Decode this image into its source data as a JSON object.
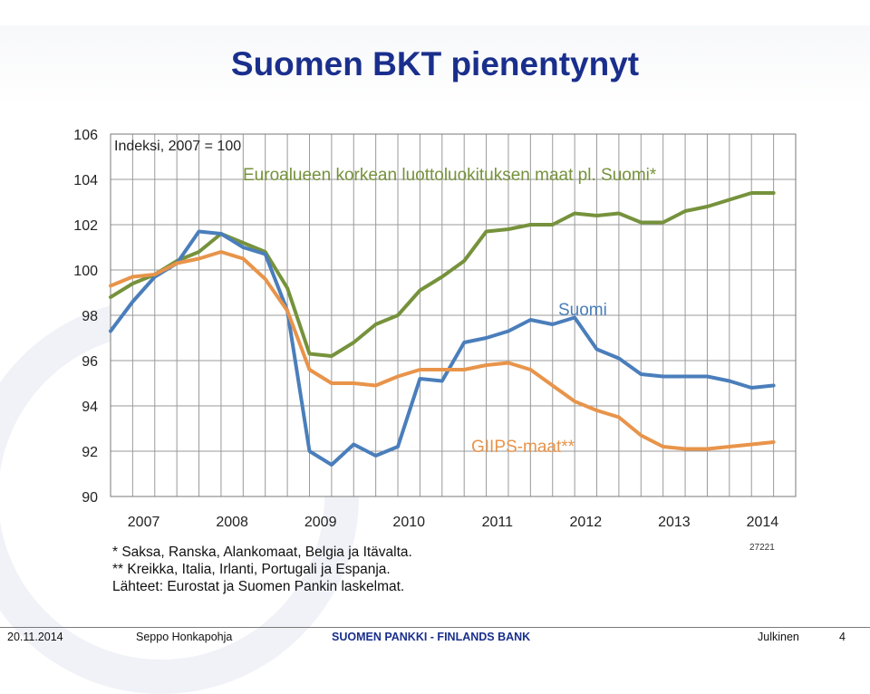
{
  "title": "Suomen BKT pienentynyt",
  "chart_data": {
    "type": "line",
    "index_label": "Indeksi, 2007 = 100",
    "x_ticks": [
      "2007",
      "2008",
      "2009",
      "2010",
      "2011",
      "2012",
      "2013",
      "2014"
    ],
    "ylim": [
      90,
      106
    ],
    "yticks": [
      90,
      92,
      94,
      96,
      98,
      100,
      102,
      104,
      106
    ],
    "x_range": [
      2007.0,
      2014.75
    ],
    "grid": true,
    "series": [
      {
        "name": "Euroalueen korkean luottoluokituksen maat pl. Suomi*",
        "color": "#76923c",
        "x": [
          2007.0,
          2007.25,
          2007.5,
          2007.75,
          2008.0,
          2008.25,
          2008.5,
          2008.75,
          2009.0,
          2009.25,
          2009.5,
          2009.75,
          2010.0,
          2010.25,
          2010.5,
          2010.75,
          2011.0,
          2011.25,
          2011.5,
          2011.75,
          2012.0,
          2012.25,
          2012.5,
          2012.75,
          2013.0,
          2013.25,
          2013.5,
          2013.75,
          2014.0,
          2014.25,
          2014.5
        ],
        "values": [
          98.8,
          99.4,
          99.8,
          100.4,
          100.8,
          101.6,
          101.2,
          100.8,
          99.2,
          96.3,
          96.2,
          96.8,
          97.6,
          98.0,
          99.1,
          99.7,
          100.4,
          101.7,
          101.8,
          102.0,
          102.0,
          102.5,
          102.4,
          102.5,
          102.1,
          102.1,
          102.6,
          102.8,
          103.1,
          103.4,
          103.4
        ]
      },
      {
        "name": "Suomi",
        "color": "#4a7ebb",
        "x": [
          2007.0,
          2007.25,
          2007.5,
          2007.75,
          2008.0,
          2008.25,
          2008.5,
          2008.75,
          2009.0,
          2009.25,
          2009.5,
          2009.75,
          2010.0,
          2010.25,
          2010.5,
          2010.75,
          2011.0,
          2011.25,
          2011.5,
          2011.75,
          2012.0,
          2012.25,
          2012.5,
          2012.75,
          2013.0,
          2013.25,
          2013.5,
          2013.75,
          2014.0,
          2014.25,
          2014.5
        ],
        "values": [
          97.3,
          98.6,
          99.7,
          100.3,
          101.7,
          101.6,
          101.0,
          100.7,
          98.2,
          92.0,
          91.4,
          92.3,
          91.8,
          92.2,
          95.2,
          95.1,
          96.8,
          97.0,
          97.3,
          97.8,
          97.6,
          97.9,
          96.5,
          96.1,
          95.4,
          95.3,
          95.3,
          95.3,
          95.1,
          94.8,
          94.9
        ]
      },
      {
        "name": "GIIPS-maat**",
        "color": "#e8944a",
        "x": [
          2007.0,
          2007.25,
          2007.5,
          2007.75,
          2008.0,
          2008.25,
          2008.5,
          2008.75,
          2009.0,
          2009.25,
          2009.5,
          2009.75,
          2010.0,
          2010.25,
          2010.5,
          2010.75,
          2011.0,
          2011.25,
          2011.5,
          2011.75,
          2012.0,
          2012.25,
          2012.5,
          2012.75,
          2013.0,
          2013.25,
          2013.5,
          2013.75,
          2014.0,
          2014.25,
          2014.5
        ],
        "values": [
          99.3,
          99.7,
          99.8,
          100.3,
          100.5,
          100.8,
          100.5,
          99.6,
          98.2,
          95.6,
          95.0,
          95.0,
          94.9,
          95.3,
          95.6,
          95.6,
          95.6,
          95.8,
          95.9,
          95.6,
          94.9,
          94.2,
          93.8,
          93.5,
          92.7,
          92.2,
          92.1,
          92.1,
          92.2,
          92.3,
          92.4
        ]
      }
    ]
  },
  "notes": [
    "* Saksa, Ranska, Alankomaat, Belgia ja Itävalta.",
    "** Kreikka, Italia, Irlanti, Portugali ja Espanja.",
    "Lähteet: Eurostat ja Suomen Pankin laskelmat."
  ],
  "code": "27221",
  "footer": {
    "date": "20.11.2014",
    "author": "Seppo Honkapohja",
    "brand": "SUOMEN PANKKI - FINLANDS BANK",
    "classification": "Julkinen",
    "page": "4"
  },
  "colors": {
    "title": "#1a2f8c",
    "grid": "#9a9a9a"
  }
}
